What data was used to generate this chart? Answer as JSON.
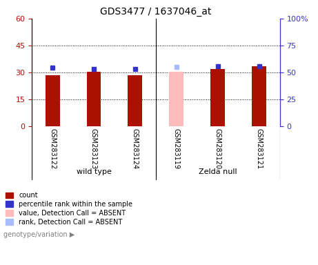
{
  "title": "GDS3477 / 1637046_at",
  "samples": [
    "GSM283122",
    "GSM283123",
    "GSM283124",
    "GSM283119",
    "GSM283120",
    "GSM283121"
  ],
  "groups": [
    "wild type",
    "wild type",
    "wild type",
    "Zelda null",
    "Zelda null",
    "Zelda null"
  ],
  "group_labels": [
    "wild type",
    "Zelda null"
  ],
  "group_colors": [
    "#90ee90",
    "#90ee90"
  ],
  "count_values": [
    28.5,
    30.5,
    28.5,
    null,
    32.0,
    33.5
  ],
  "count_absent_values": [
    null,
    null,
    null,
    30.5,
    null,
    null
  ],
  "rank_values": [
    32.5,
    32.0,
    32.0,
    null,
    33.5,
    33.5
  ],
  "rank_absent_values": [
    null,
    null,
    null,
    33.0,
    null,
    null
  ],
  "ylim_left": [
    0,
    60
  ],
  "ylim_right": [
    0,
    100
  ],
  "yticks_left": [
    0,
    15,
    30,
    45,
    60
  ],
  "yticks_right": [
    0,
    25,
    50,
    75,
    100
  ],
  "ytick_labels_left": [
    "0",
    "15",
    "30",
    "45",
    "60"
  ],
  "ytick_labels_right": [
    "0",
    "25",
    "50",
    "75",
    "100%"
  ],
  "color_count": "#aa1100",
  "color_rank": "#3333cc",
  "color_count_absent": "#ffbbbb",
  "color_rank_absent": "#aabbff",
  "bar_width": 0.35,
  "label_count": "count",
  "label_rank": "percentile rank within the sample",
  "label_count_absent": "value, Detection Call = ABSENT",
  "label_rank_absent": "rank, Detection Call = ABSENT",
  "legend_label": "genotype/variation",
  "background_color": "#ffffff",
  "plot_bg_color": "#ffffff",
  "sample_bg_color": "#d3d3d3"
}
